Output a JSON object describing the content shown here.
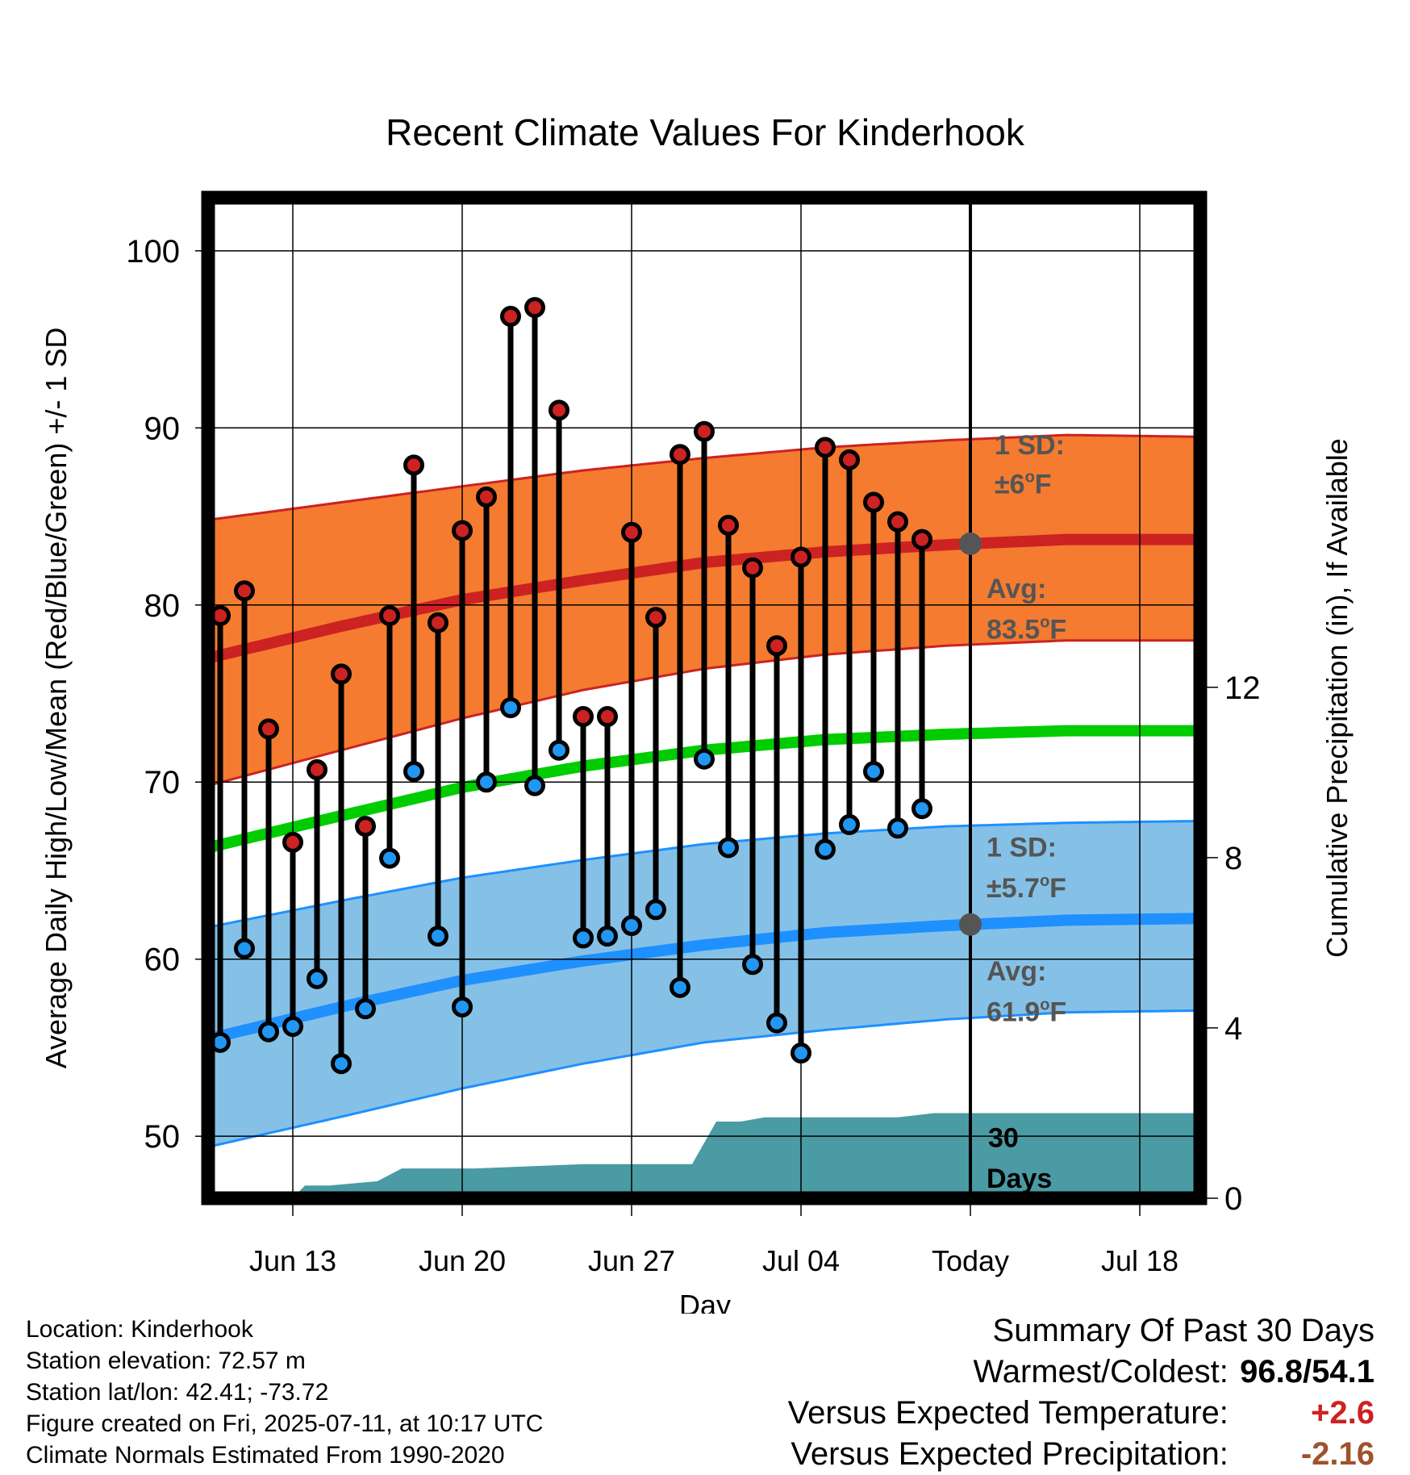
{
  "chart_data": {
    "type": "line",
    "title": "Recent Climate Values For Kinderhook",
    "xlabel": "Day",
    "ylabel": "Average Daily High/Low/Mean (Red/Blue/Green) +/- 1 SD",
    "y2label": "Cumulative Precipitation (in), If Available",
    "ylim": [
      46.5,
      103
    ],
    "y2lim": [
      0,
      23.5
    ],
    "yticks": [
      50,
      60,
      70,
      80,
      90,
      100
    ],
    "y2ticks": [
      0,
      4,
      8,
      12
    ],
    "xticks": [
      {
        "day": 3,
        "label": "Jun 13"
      },
      {
        "day": 10,
        "label": "Jun 20"
      },
      {
        "day": 17,
        "label": "Jun 27"
      },
      {
        "day": 24,
        "label": "Jul 04"
      },
      {
        "day": 31,
        "label": "Today"
      },
      {
        "day": 38,
        "label": "Jul 18"
      }
    ],
    "xlim": [
      -0.5,
      40.5
    ],
    "today_day": 31,
    "grid": true,
    "days": [
      "Jun 11",
      "Jun 12",
      "Jun 13",
      "Jun 14",
      "Jun 15",
      "Jun 16",
      "Jun 17",
      "Jun 18",
      "Jun 19",
      "Jun 20",
      "Jun 21",
      "Jun 22",
      "Jun 23",
      "Jun 24",
      "Jun 25",
      "Jun 26",
      "Jun 27",
      "Jun 28",
      "Jun 29",
      "Jun 30",
      "Jul 01",
      "Jul 02",
      "Jul 03",
      "Jul 04",
      "Jul 05",
      "Jul 06",
      "Jul 07",
      "Jul 08",
      "Jul 09",
      "Jul 10"
    ],
    "daily_high": [
      79.4,
      80.8,
      73.0,
      66.6,
      70.7,
      76.1,
      67.5,
      79.4,
      87.9,
      79.0,
      84.2,
      86.1,
      96.3,
      96.8,
      91.0,
      73.7,
      73.7,
      84.1,
      79.3,
      88.5,
      89.8,
      84.5,
      82.1,
      77.7,
      82.7,
      88.9,
      88.2,
      85.8,
      84.7,
      83.7
    ],
    "daily_low": [
      55.3,
      60.6,
      55.9,
      56.2,
      58.9,
      54.1,
      57.2,
      65.7,
      70.6,
      61.3,
      57.3,
      70.0,
      74.2,
      69.8,
      71.8,
      61.2,
      61.3,
      61.9,
      62.8,
      58.4,
      71.3,
      66.3,
      59.7,
      56.4,
      54.7,
      66.2,
      67.6,
      70.6,
      67.4,
      68.5
    ],
    "normal_high": {
      "x": [
        -0.5,
        5,
        10,
        15,
        20,
        25,
        30,
        35,
        40.5
      ],
      "avg": [
        77.0,
        78.8,
        80.3,
        81.4,
        82.4,
        83.0,
        83.4,
        83.7,
        83.7
      ],
      "upper": [
        84.8,
        85.8,
        86.7,
        87.6,
        88.3,
        88.9,
        89.3,
        89.6,
        89.5
      ],
      "lower": [
        69.8,
        71.8,
        73.6,
        75.2,
        76.4,
        77.2,
        77.7,
        78.0,
        78.0
      ]
    },
    "normal_mean": {
      "x": [
        -0.5,
        5,
        10,
        15,
        20,
        25,
        30,
        35,
        40.5
      ],
      "values": [
        66.3,
        68.1,
        69.7,
        70.9,
        71.8,
        72.4,
        72.7,
        72.9,
        72.9
      ]
    },
    "normal_low": {
      "x": [
        -0.5,
        5,
        10,
        15,
        20,
        25,
        30,
        35,
        40.5
      ],
      "avg": [
        55.5,
        57.3,
        58.8,
        59.9,
        60.8,
        61.5,
        61.9,
        62.2,
        62.3
      ],
      "upper": [
        61.8,
        63.3,
        64.6,
        65.6,
        66.5,
        67.1,
        67.5,
        67.7,
        67.8
      ],
      "lower": [
        49.4,
        51.1,
        52.7,
        54.1,
        55.3,
        56.0,
        56.6,
        57.0,
        57.1
      ]
    },
    "precip_cumulative": {
      "x": [
        -0.5,
        3,
        3.5,
        4.5,
        6.5,
        7.5,
        10.5,
        15,
        19.5,
        20.5,
        21.5,
        22.5,
        23.5,
        28,
        29.5,
        30.5,
        40.5
      ],
      "values": [
        0,
        0,
        0.3,
        0.3,
        0.4,
        0.7,
        0.7,
        0.8,
        0.8,
        1.8,
        1.8,
        1.9,
        1.9,
        1.9,
        2.0,
        2.0,
        2.0
      ]
    },
    "annotations": {
      "high_sd_label": "1 SD:",
      "high_sd_value": "±6",
      "high_avg_label": "Avg:",
      "high_avg_value": "83.5",
      "low_sd_label": "1 SD:",
      "low_sd_value": "±5.7",
      "low_avg_label": "Avg:",
      "low_avg_value": "61.9",
      "deg_symbol": "o",
      "unit": "F",
      "precip_label_1": "30",
      "precip_label_2": "Days"
    },
    "colors": {
      "high_band": "#f47b30",
      "high_line": "#cc2222",
      "mean_line": "#00cc00",
      "low_band": "#85c1e6",
      "low_line": "#1e90ff",
      "precip": "#4a9ba3",
      "high_marker": "#cc2222",
      "low_marker": "#2196f3",
      "annotation": "#555555"
    }
  },
  "info": {
    "location": "Location: Kinderhook",
    "elevation": "Station elevation: 72.57 m",
    "latlon": "Station lat/lon: 42.41; -73.72",
    "created": "Figure created on Fri, 2025-07-11, at 10:17 UTC",
    "normals": "Climate Normals Estimated From 1990-2020"
  },
  "summary": {
    "title": "Summary Of Past 30 Days",
    "warmest_label": "Warmest/Coldest:",
    "warmest_value": "96.8/54.1",
    "temp_label": "Versus Expected Temperature:",
    "temp_value": "+2.6",
    "temp_color": "#cc2222",
    "precip_label": "Versus Expected Precipitation:",
    "precip_value": "-2.16",
    "precip_color": "#a0522d"
  }
}
